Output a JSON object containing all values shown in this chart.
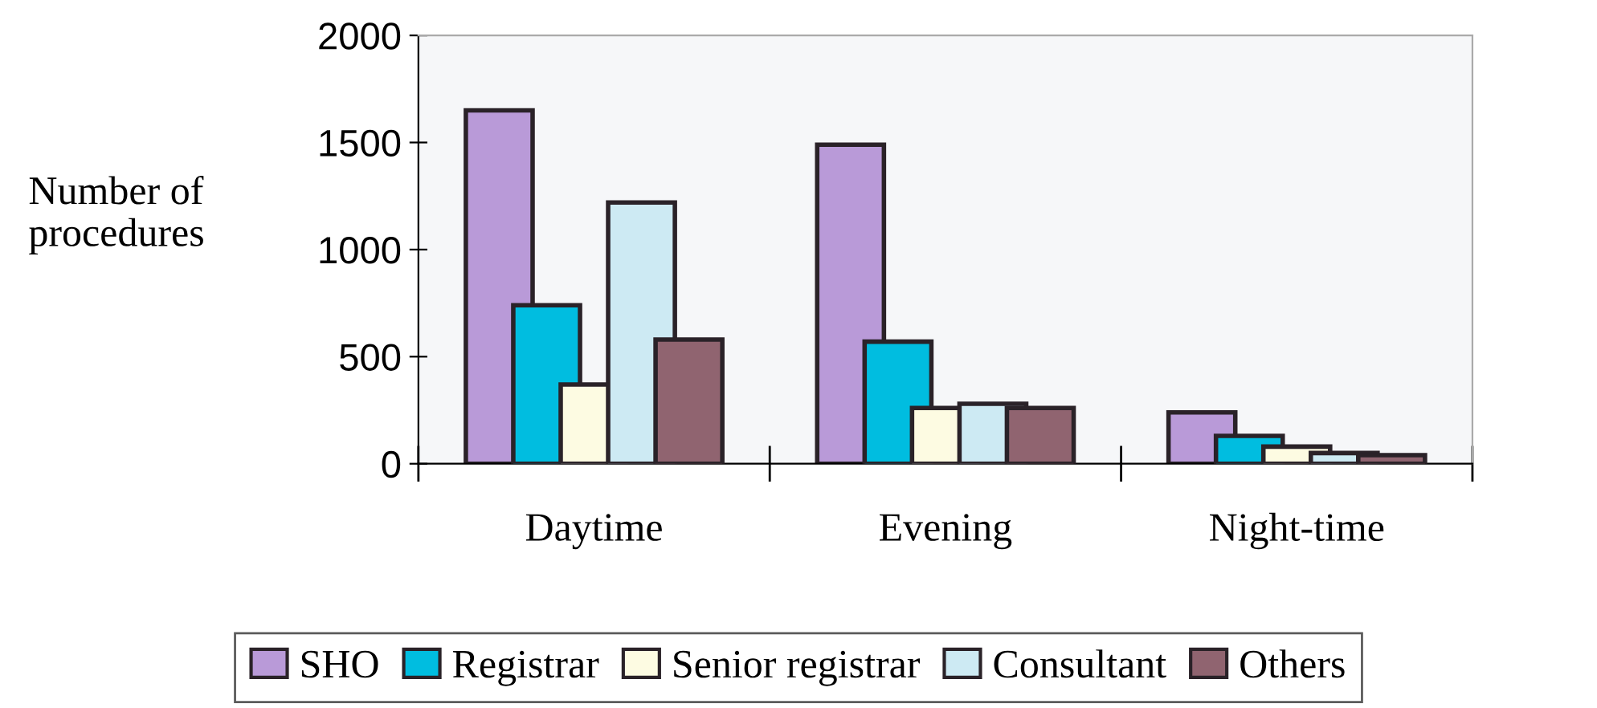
{
  "chart_data": {
    "type": "bar",
    "ylabel": "Number of\nprocedures",
    "categories": [
      "Daytime",
      "Evening",
      "Night-time"
    ],
    "series": [
      {
        "name": "SHO",
        "color": "#b99ad8",
        "values": [
          1650,
          1490,
          240
        ]
      },
      {
        "name": "Registrar",
        "color": "#00bde0",
        "values": [
          740,
          570,
          130
        ]
      },
      {
        "name": "Senior registrar",
        "color": "#fdfbe2",
        "values": [
          370,
          260,
          80
        ]
      },
      {
        "name": "Consultant",
        "color": "#cdeaf3",
        "values": [
          1220,
          280,
          50
        ]
      },
      {
        "name": "Others",
        "color": "#906470",
        "values": [
          580,
          260,
          40
        ]
      }
    ],
    "ylim": [
      0,
      2000
    ],
    "yticks": [
      0,
      500,
      1000,
      1500,
      2000
    ],
    "grid": false,
    "legend": "bottom"
  }
}
